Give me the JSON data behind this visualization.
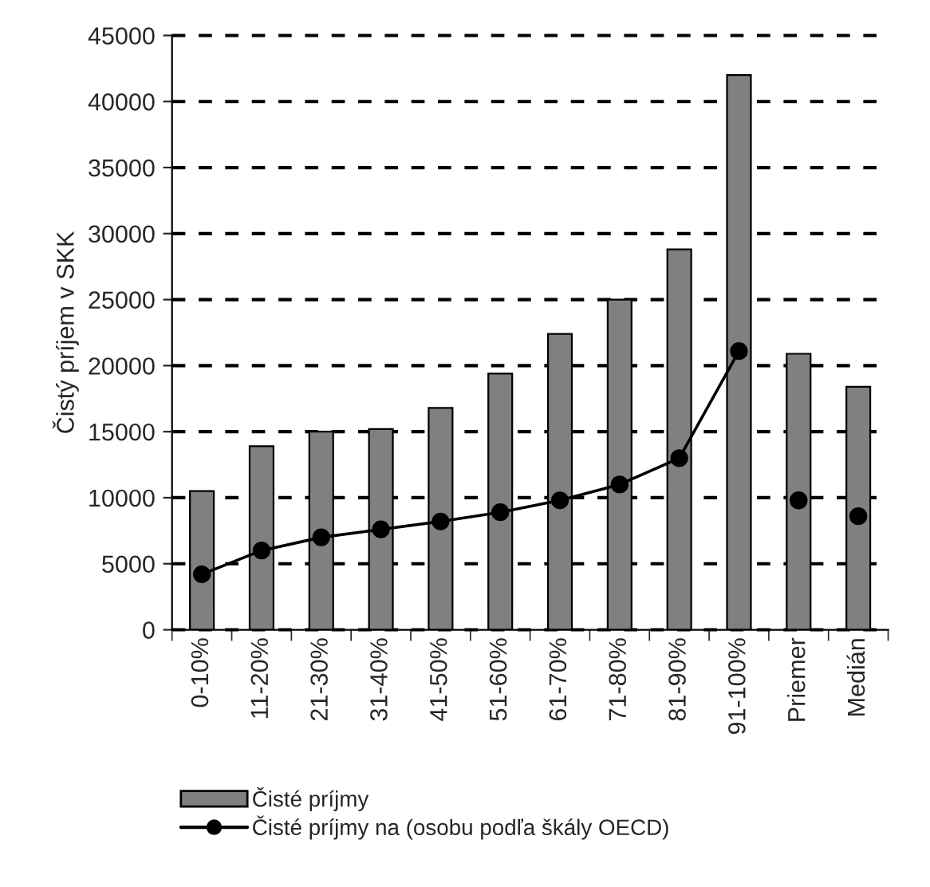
{
  "chart_data": {
    "type": "bar",
    "ylabel": "Čistý príjem v SKK",
    "categories": [
      "0-10%",
      "11-20%",
      "21-30%",
      "31-40%",
      "41-50%",
      "51-60%",
      "61-70%",
      "71-80%",
      "81-90%",
      "91-100%",
      "Priemer",
      "Medián"
    ],
    "series": [
      {
        "name": "Čisté príjmy",
        "color": "#808080",
        "values": [
          10500,
          13900,
          15000,
          15200,
          16800,
          19400,
          22400,
          25000,
          28800,
          42000,
          20900,
          18400
        ]
      },
      {
        "name": "Čisté príjmy na (osobu podľa škály OECD)",
        "type": "line",
        "color": "#000000",
        "marker": "circle",
        "values": [
          4200,
          6000,
          7000,
          7600,
          8200,
          8900,
          9800,
          11000,
          13000,
          21100,
          null,
          null
        ]
      },
      {
        "type": "scatter",
        "color": "#000000",
        "marker": "circle",
        "values": [
          null,
          null,
          null,
          null,
          null,
          null,
          null,
          null,
          null,
          null,
          9800,
          8600
        ]
      }
    ],
    "ylim": [
      0,
      45000
    ],
    "yticks": [
      0,
      5000,
      10000,
      15000,
      20000,
      25000,
      30000,
      35000,
      40000,
      45000
    ],
    "grid": "y",
    "legend": "bottom"
  }
}
